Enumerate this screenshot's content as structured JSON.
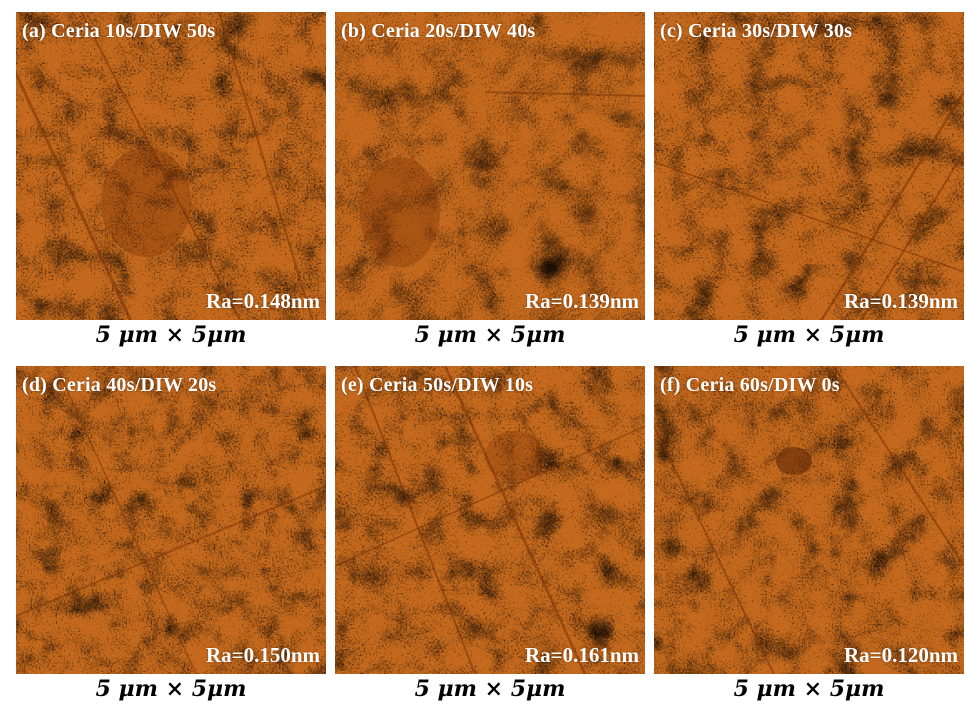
{
  "panels": [
    {
      "label": "(a) Ceria 10s/DIW 50s",
      "ra": "Ra=0.148nm",
      "scale": "5 μm × 5μm"
    },
    {
      "label": "(b) Ceria 20s/DIW 40s",
      "ra": "Ra=0.139nm",
      "scale": "5 μm × 5μm"
    },
    {
      "label": "(c) Ceria 30s/DIW 30s",
      "ra": "Ra=0.139nm",
      "scale": "5 μm × 5μm"
    },
    {
      "label": "(d) Ceria 40s/DIW 20s",
      "ra": "Ra=0.150nm",
      "scale": "5 μm × 5μm"
    },
    {
      "label": "(e) Ceria 50s/DIW 10s",
      "ra": "Ra=0.161nm",
      "scale": "5 μm × 5μm"
    },
    {
      "label": "(f) Ceria 60s/DIW 0s",
      "ra": "Ra=0.120nm",
      "scale": "5 μm × 5μm"
    }
  ],
  "colors": {
    "afm_base": "#c4691d",
    "afm_dark": "#7a3206",
    "afm_light": "#f4c068",
    "label_text": "#ffffff",
    "scale_text": "#000000"
  }
}
